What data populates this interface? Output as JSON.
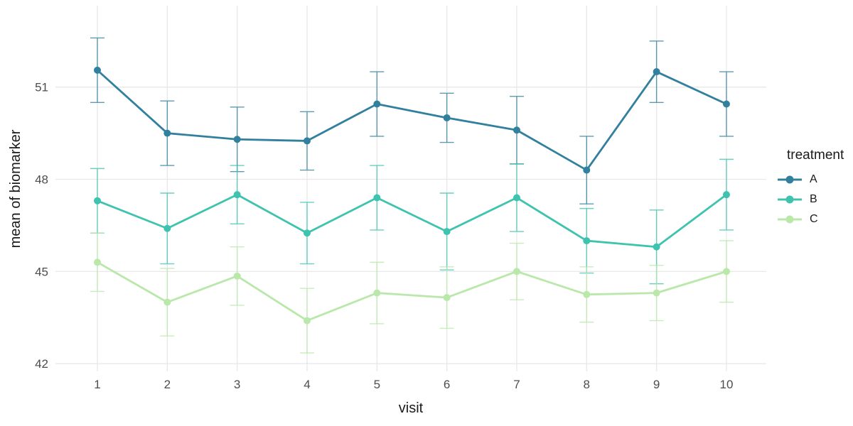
{
  "legend": {
    "title": "treatment",
    "items": [
      {
        "label": "A",
        "color": "#31809e"
      },
      {
        "label": "B",
        "color": "#3dc3ae"
      },
      {
        "label": "C",
        "color": "#b9e8aa"
      }
    ]
  },
  "chart_data": {
    "type": "line",
    "title": "",
    "xlabel": "visit",
    "ylabel": "mean of biomarker",
    "x": [
      1,
      2,
      3,
      4,
      5,
      6,
      7,
      8,
      9,
      10
    ],
    "x_tick_labels": [
      "1",
      "2",
      "3",
      "4",
      "5",
      "6",
      "7",
      "8",
      "9",
      "10"
    ],
    "y_ticks": [
      42,
      45,
      48,
      51
    ],
    "xlim": [
      0.4,
      10.57
    ],
    "ylim": [
      41.75,
      53.65
    ],
    "grid": true,
    "legend_position": "right",
    "legend_title": "treatment",
    "error_bars": true,
    "series": [
      {
        "name": "A",
        "color": "#31809e",
        "values": [
          51.55,
          49.5,
          49.3,
          49.25,
          50.45,
          50.0,
          49.6,
          48.3,
          51.5,
          50.45
        ],
        "errors": [
          1.05,
          1.05,
          1.05,
          0.95,
          1.05,
          0.8,
          1.1,
          1.1,
          1.0,
          1.05
        ]
      },
      {
        "name": "B",
        "color": "#3dc3ae",
        "values": [
          47.3,
          46.4,
          47.5,
          46.25,
          47.4,
          46.3,
          47.4,
          46.0,
          45.8,
          47.5
        ],
        "errors": [
          1.05,
          1.15,
          0.95,
          1.0,
          1.05,
          1.25,
          1.1,
          1.05,
          1.2,
          1.15
        ]
      },
      {
        "name": "C",
        "color": "#b9e8aa",
        "values": [
          45.3,
          44.0,
          44.85,
          43.4,
          44.3,
          44.15,
          45.0,
          44.25,
          44.3,
          45.0
        ],
        "errors": [
          0.95,
          1.1,
          0.95,
          1.05,
          1.0,
          1.0,
          0.92,
          0.9,
          0.9,
          1.0
        ]
      }
    ]
  }
}
